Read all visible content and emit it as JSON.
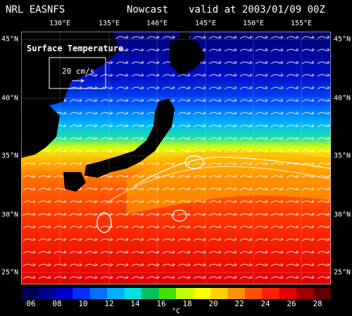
{
  "header": {
    "left": "NRL EASNFS",
    "middle": "Nowcast",
    "right": "valid at 2003/01/09 00Z"
  },
  "map": {
    "title": "Surface Temperature",
    "scale_label": "20 cm/s",
    "lon_labels": [
      "130°E",
      "135°E",
      "140°E",
      "145°E",
      "150°E",
      "155°E"
    ],
    "lat_labels": [
      "45°N",
      "40°N",
      "35°N",
      "30°N",
      "25°N"
    ]
  },
  "colorbar": {
    "labels": [
      "06",
      "08",
      "10",
      "12",
      "14",
      "16",
      "18",
      "20",
      "22",
      "24",
      "26",
      "28"
    ],
    "unit": "°C",
    "colors": [
      "#000050",
      "#000090",
      "#0000c8",
      "#0030ff",
      "#0070ff",
      "#00b0ff",
      "#00e0e0",
      "#00c060",
      "#40e000",
      "#c0ff00",
      "#ffff00",
      "#ffd000",
      "#ff9000",
      "#ff5000",
      "#ff2000",
      "#e00000",
      "#a00000",
      "#600000"
    ]
  },
  "palette": {
    "land": "#000000",
    "vector": "#ffffff"
  }
}
